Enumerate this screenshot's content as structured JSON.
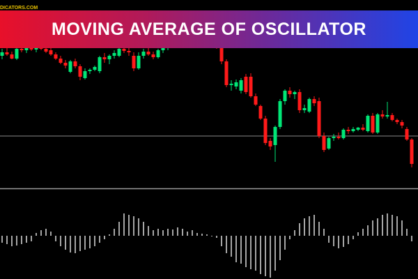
{
  "banner": {
    "title": "MOVING AVERAGE OF OSCILLATOR"
  },
  "watermark": "DICATORS.COM",
  "chart_data": [
    {
      "type": "candlestick",
      "ylim": [
        0,
        270
      ],
      "up_color": "#00e676",
      "down_color": "#ff1a1a",
      "reference_line": 75,
      "open": [
        190,
        195,
        192,
        186,
        200,
        198,
        201,
        199,
        203,
        200,
        198,
        192,
        186,
        180,
        167,
        182,
        175,
        158,
        168,
        170,
        168,
        188,
        185,
        190,
        190,
        200,
        197,
        190,
        172,
        190,
        196,
        192,
        188,
        198,
        202,
        206,
        210,
        208,
        211,
        215,
        212,
        209,
        213,
        210,
        207,
        203,
        182,
        148,
        146,
        140,
        160,
        160,
        132,
        118,
        100,
        68,
        62,
        88,
        125,
        140,
        135,
        138,
        112,
        110,
        128,
        125,
        75,
        57,
        72,
        74,
        72,
        84,
        82,
        84,
        87,
        82,
        104,
        80,
        106,
        103,
        105,
        98,
        95,
        85,
        70
      ],
      "high": [
        200,
        202,
        196,
        202,
        205,
        204,
        206,
        205,
        208,
        206,
        204,
        195,
        190,
        184,
        184,
        186,
        178,
        172,
        172,
        176,
        190,
        194,
        192,
        198,
        202,
        206,
        203,
        195,
        195,
        200,
        202,
        196,
        200,
        206,
        210,
        214,
        216,
        214,
        218,
        220,
        218,
        216,
        219,
        215,
        212,
        206,
        185,
        155,
        156,
        158,
        164,
        165,
        136,
        120,
        104,
        72,
        90,
        128,
        142,
        145,
        140,
        142,
        120,
        130,
        132,
        130,
        80,
        74,
        78,
        80,
        86,
        88,
        88,
        88,
        92,
        106,
        108,
        108,
        112,
        124,
        108,
        100,
        98,
        88,
        72
      ],
      "low": [
        185,
        190,
        185,
        184,
        195,
        194,
        197,
        195,
        198,
        194,
        190,
        184,
        178,
        172,
        165,
        172,
        155,
        156,
        164,
        168,
        165,
        180,
        178,
        186,
        188,
        194,
        190,
        168,
        170,
        186,
        190,
        185,
        186,
        194,
        198,
        202,
        204,
        203,
        207,
        209,
        206,
        205,
        208,
        204,
        200,
        178,
        145,
        140,
        142,
        136,
        135,
        130,
        118,
        98,
        62,
        55,
        38,
        85,
        120,
        130,
        128,
        108,
        108,
        108,
        118,
        72,
        52,
        55,
        68,
        70,
        70,
        78,
        80,
        82,
        82,
        80,
        78,
        78,
        100,
        100,
        96,
        92,
        86,
        68,
        30
      ],
      "close": [
        195,
        192,
        186,
        200,
        198,
        201,
        199,
        203,
        200,
        196,
        192,
        186,
        180,
        176,
        182,
        175,
        160,
        168,
        170,
        174,
        188,
        185,
        190,
        194,
        200,
        197,
        195,
        172,
        190,
        196,
        192,
        188,
        198,
        202,
        206,
        210,
        208,
        211,
        215,
        212,
        209,
        213,
        210,
        207,
        203,
        182,
        148,
        150,
        152,
        155,
        138,
        132,
        120,
        100,
        65,
        60,
        88,
        125,
        140,
        135,
        138,
        112,
        115,
        128,
        122,
        75,
        55,
        72,
        74,
        72,
        84,
        82,
        85,
        87,
        84,
        104,
        80,
        106,
        103,
        105,
        98,
        95,
        90,
        70,
        35
      ]
    },
    {
      "type": "bar",
      "ylim": [
        -62,
        68
      ],
      "color": "#ffffff",
      "values": [
        -10,
        -12,
        -15,
        -14,
        -12,
        -10,
        -8,
        4,
        8,
        10,
        6,
        -8,
        -15,
        -20,
        -24,
        -25,
        -22,
        -20,
        -18,
        -15,
        -10,
        -5,
        2,
        10,
        20,
        32,
        30,
        28,
        25,
        20,
        14,
        8,
        10,
        8,
        10,
        9,
        12,
        10,
        6,
        8,
        4,
        3,
        2,
        -1,
        -3,
        -15,
        -25,
        -30,
        -38,
        -40,
        -45,
        -48,
        -50,
        -55,
        -58,
        -60,
        -50,
        -35,
        -20,
        -5,
        8,
        18,
        25,
        28,
        30,
        20,
        10,
        -10,
        -15,
        -18,
        -16,
        -12,
        -5,
        5,
        10,
        15,
        22,
        25,
        30,
        32,
        30,
        28,
        22,
        10,
        -8
      ]
    }
  ]
}
